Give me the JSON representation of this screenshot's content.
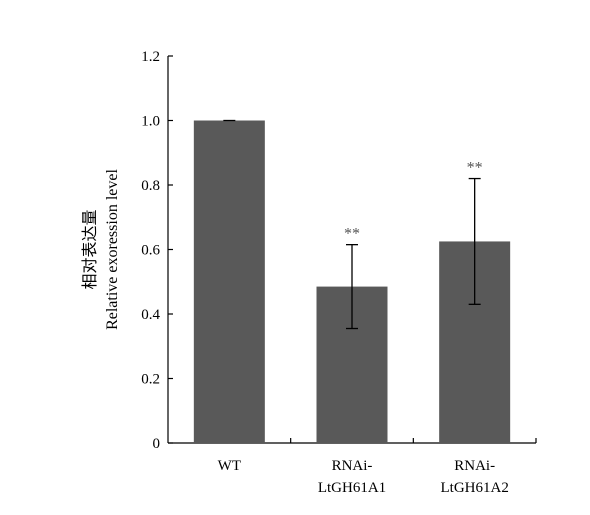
{
  "chart_data": {
    "type": "bar",
    "categories": [
      [
        "WT"
      ],
      [
        "RNAi-",
        "LtGH61A1"
      ],
      [
        "RNAi-",
        "LtGH61A2"
      ]
    ],
    "values": [
      1.0,
      0.485,
      0.625
    ],
    "error_bars": [
      0.0,
      0.13,
      0.195
    ],
    "significance": [
      "",
      "**",
      "**"
    ],
    "ylabel_lines": [
      "相对表达量",
      "Relative exoression level"
    ],
    "xlabel": "",
    "ylim": [
      0,
      1.2
    ],
    "yticks": [
      0,
      0.2,
      0.4,
      0.6,
      0.8,
      1.0,
      1.2
    ],
    "ytick_labels": [
      "0",
      "0.2",
      "0.4",
      "0.6",
      "0.8",
      "1.0",
      "1.2"
    ],
    "grid": false,
    "bar_color": "#595959"
  }
}
